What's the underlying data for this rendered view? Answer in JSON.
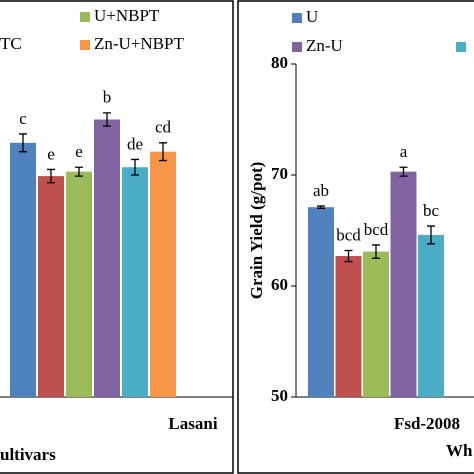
{
  "chart_data": [
    {
      "type": "bar",
      "categories": [
        "Lasani"
      ],
      "x_label": "ultivars",
      "ylim": [
        50,
        80
      ],
      "legend": [
        {
          "name": "TC"
        },
        {
          "name": "U+NBPT",
          "color": "#9bbb59"
        },
        {
          "name": "Zn-U+NBPT",
          "color": "#f79646"
        }
      ],
      "series": [
        {
          "color": "#4f81bd",
          "values": [
            72.9
          ],
          "errors": [
            0.8
          ],
          "letters": [
            "c"
          ]
        },
        {
          "color": "#c0504d",
          "values": [
            69.9
          ],
          "errors": [
            0.6
          ],
          "letters": [
            "e"
          ]
        },
        {
          "color": "#9bbb59",
          "values": [
            70.3
          ],
          "errors": [
            0.4
          ],
          "letters": [
            "e"
          ]
        },
        {
          "color": "#8064a2",
          "values": [
            75.0
          ],
          "errors": [
            0.6
          ],
          "letters": [
            "b"
          ]
        },
        {
          "color": "#4bacc6",
          "values": [
            70.7
          ],
          "errors": [
            0.7
          ],
          "letters": [
            "de"
          ]
        },
        {
          "color": "#f79646",
          "values": [
            72.1
          ],
          "errors": [
            0.8
          ],
          "letters": [
            "cd"
          ]
        }
      ]
    },
    {
      "type": "bar",
      "categories": [
        "Fsd-2008"
      ],
      "x_label": "Wh",
      "y_label": "Grain Yield (g/pot)",
      "ylim": [
        50,
        80
      ],
      "yticks": [
        50,
        60,
        70,
        80
      ],
      "legend": [
        {
          "name": "U",
          "color": "#4f81bd"
        },
        {
          "name": "Zn-U",
          "color": "#8064a2"
        },
        {
          "color": "#4bacc6"
        }
      ],
      "series": [
        {
          "color": "#4f81bd",
          "values": [
            67.1
          ],
          "errors": [
            0.1
          ],
          "letters": [
            "ab"
          ]
        },
        {
          "color": "#c0504d",
          "values": [
            62.7
          ],
          "errors": [
            0.5
          ],
          "letters": [
            "bcd"
          ]
        },
        {
          "color": "#9bbb59",
          "values": [
            63.1
          ],
          "errors": [
            0.6
          ],
          "letters": [
            "bcd"
          ]
        },
        {
          "color": "#8064a2",
          "values": [
            70.3
          ],
          "errors": [
            0.4
          ],
          "letters": [
            "a"
          ]
        },
        {
          "color": "#4bacc6",
          "values": [
            64.6
          ],
          "errors": [
            0.8
          ],
          "letters": [
            "bc"
          ]
        }
      ]
    }
  ]
}
